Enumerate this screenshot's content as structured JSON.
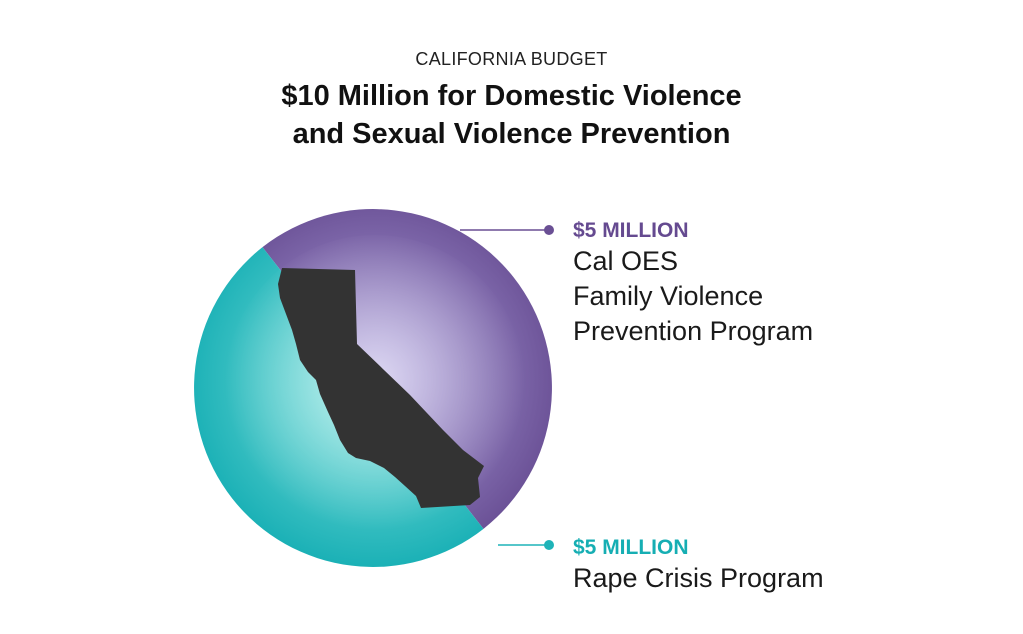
{
  "header": {
    "kicker": "CALIFORNIA BUDGET",
    "title_line1": "$10 Million for Domestic Violence",
    "title_line2": "and Sexual Violence Prevention"
  },
  "colors": {
    "purple": "#6a4f94",
    "purple_light": "#a79ad9",
    "teal": "#1fb3b8",
    "teal_light": "#7ee1dd",
    "state": "#333333"
  },
  "chart_data": {
    "type": "pie",
    "title": "$10 Million for Domestic Violence and Sexual Violence Prevention",
    "slices": [
      {
        "label": "Cal OES Family Violence Prevention Program",
        "amount_label": "$5 MILLION",
        "value": 5,
        "color": "#6a4f94"
      },
      {
        "label": "Rape Crisis Program",
        "amount_label": "$5 MILLION",
        "value": 5,
        "color": "#1fb3b8"
      }
    ],
    "unit": "million dollars"
  },
  "labels": {
    "purple": {
      "amount": "$5 MILLION",
      "line1": "Cal OES",
      "line2": "Family Violence",
      "line3": "Prevention Program"
    },
    "teal": {
      "amount": "$5 MILLION",
      "line1": "Rape Crisis Program"
    }
  }
}
